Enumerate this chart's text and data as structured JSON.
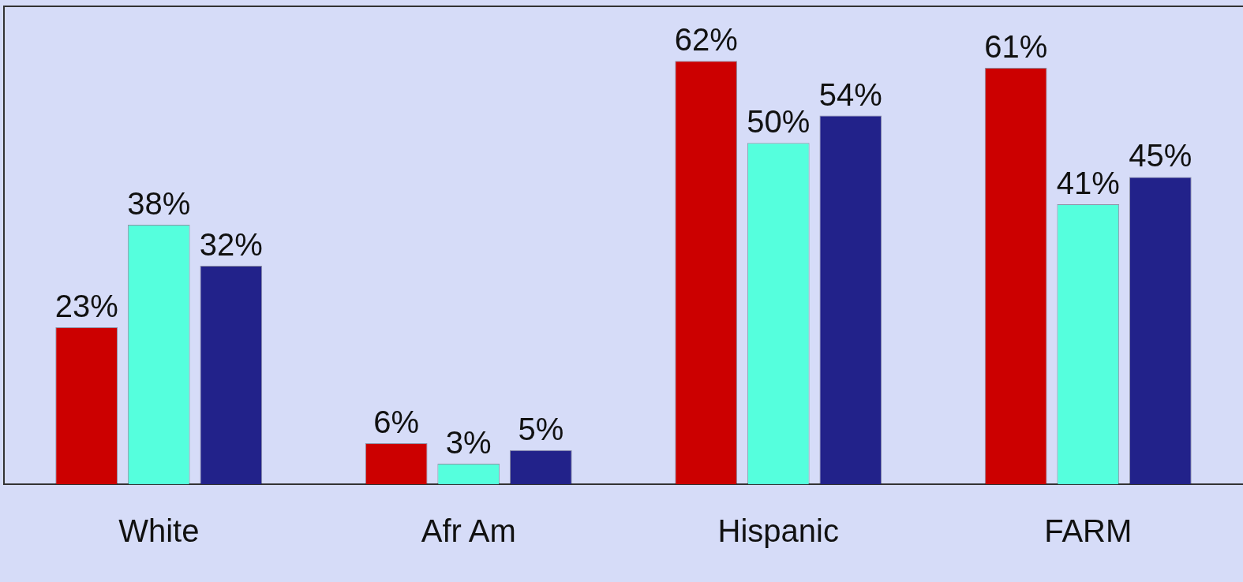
{
  "chart_data": {
    "type": "bar",
    "categories": [
      "White",
      "Afr Am",
      "Hispanic",
      "FARM"
    ],
    "series": [
      {
        "color": "#cc0000",
        "values": [
          23,
          6,
          62,
          61
        ],
        "value_labels": [
          "23%",
          "6%",
          "62%",
          "61%"
        ]
      },
      {
        "color": "#55ffdd",
        "values": [
          38,
          3,
          50,
          41
        ],
        "value_labels": [
          "38%",
          "3%",
          "50%",
          "41%"
        ]
      },
      {
        "color": "#22228a",
        "values": [
          32,
          5,
          54,
          45
        ],
        "value_labels": [
          "32%",
          "5%",
          "54%",
          "45%"
        ]
      }
    ],
    "tick_labels": "x",
    "grid": false,
    "legend": false
  }
}
